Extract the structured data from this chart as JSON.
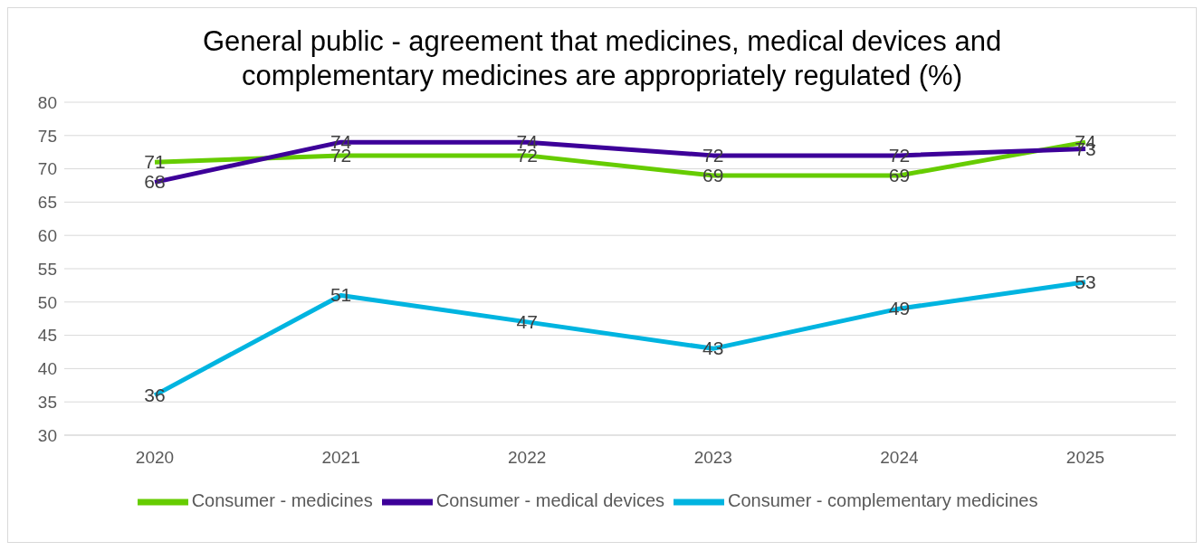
{
  "chart_data": {
    "type": "line",
    "title": "General public - agreement that medicines, medical devices and complementary medicines are appropriately regulated (%)",
    "categories": [
      "2020",
      "2021",
      "2022",
      "2023",
      "2024",
      "2025"
    ],
    "series": [
      {
        "name": "Consumer - medicines",
        "color": "#66cc00",
        "values": [
          71,
          72,
          72,
          69,
          69,
          74
        ]
      },
      {
        "name": "Consumer - medical devices",
        "color": "#3d0099",
        "values": [
          68,
          74,
          74,
          72,
          72,
          73
        ]
      },
      {
        "name": "Consumer - complementary medicines",
        "color": "#00b4e0",
        "values": [
          36,
          51,
          47,
          43,
          49,
          53
        ]
      }
    ],
    "ylim": [
      30,
      80
    ],
    "yticks": [
      30,
      35,
      40,
      45,
      50,
      55,
      60,
      65,
      70,
      75,
      80
    ],
    "grid": "y",
    "legend": "bottom",
    "data_labels": true,
    "marker": "none",
    "line_style": "solid"
  }
}
